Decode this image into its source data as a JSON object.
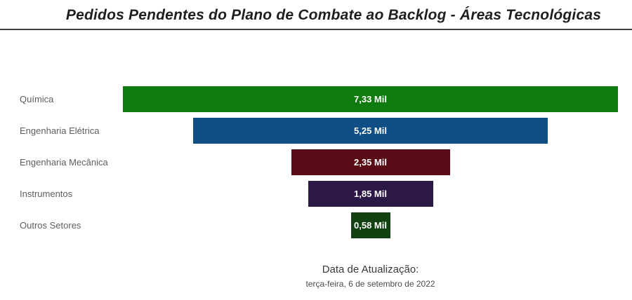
{
  "chart_data": {
    "type": "bar",
    "subtype": "funnel",
    "orientation": "horizontal-centered",
    "title": "Pedidos Pendentes do Plano de Combate ao Backlog - Áreas Tecnológicas",
    "categories": [
      "Química",
      "Engenharia Elétrica",
      "Engenharia Mecânica",
      "Instrumentos",
      "Outros Setores"
    ],
    "values": [
      7.33,
      5.25,
      2.35,
      1.85,
      0.58
    ],
    "value_labels": [
      "7,33 Mil",
      "5,25 Mil",
      "2,35 Mil",
      "1,85 Mil",
      "0,58 Mil"
    ],
    "bar_colors": [
      "#0f7b0f",
      "#104f85",
      "#580c16",
      "#2c1846",
      "#114111"
    ],
    "xlim": [
      0,
      7.33
    ],
    "unit": "Mil",
    "legend": "none",
    "grid": false,
    "annotations": {
      "update_label": "Data de Atualização:",
      "update_date": "terça-feira, 6 de setembro de 2022"
    }
  }
}
